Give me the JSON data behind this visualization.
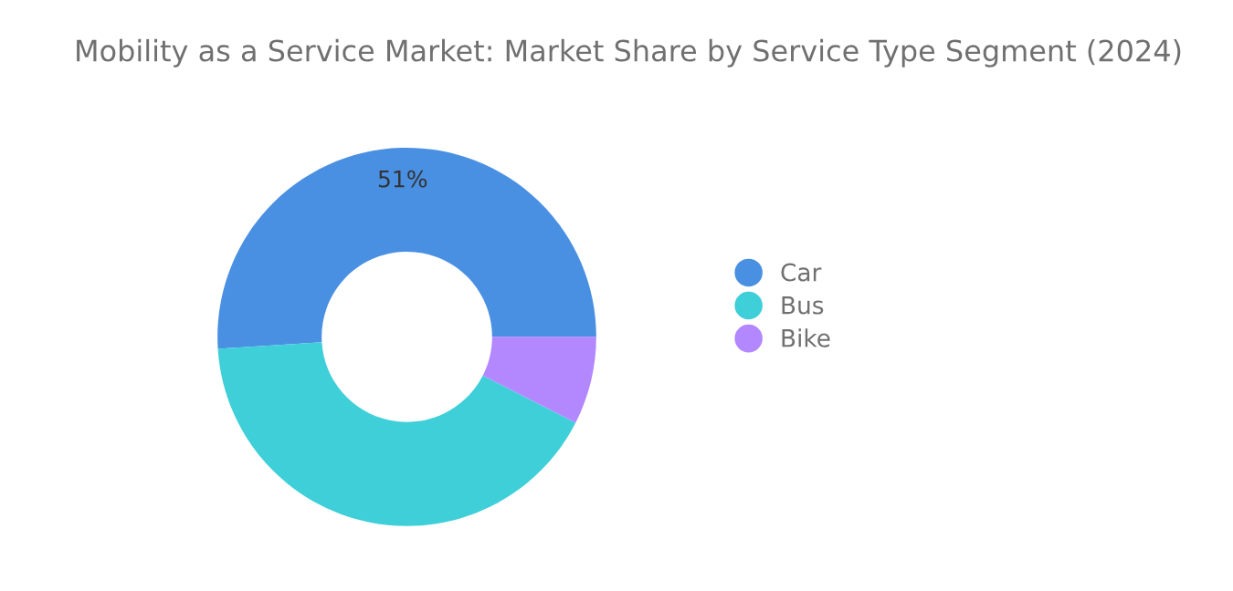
{
  "chart_data": {
    "type": "donut",
    "title": "Mobility as a Service Market: Market Share by Service Type Segment (2024)",
    "categories": [
      "Car",
      "Bus",
      "Bike"
    ],
    "values": [
      51,
      41.5,
      7.5
    ],
    "colors": [
      "#4a90e2",
      "#3ecfd9",
      "#b388ff"
    ],
    "value_labels": [
      "51%",
      null,
      null
    ],
    "legend": "right"
  }
}
